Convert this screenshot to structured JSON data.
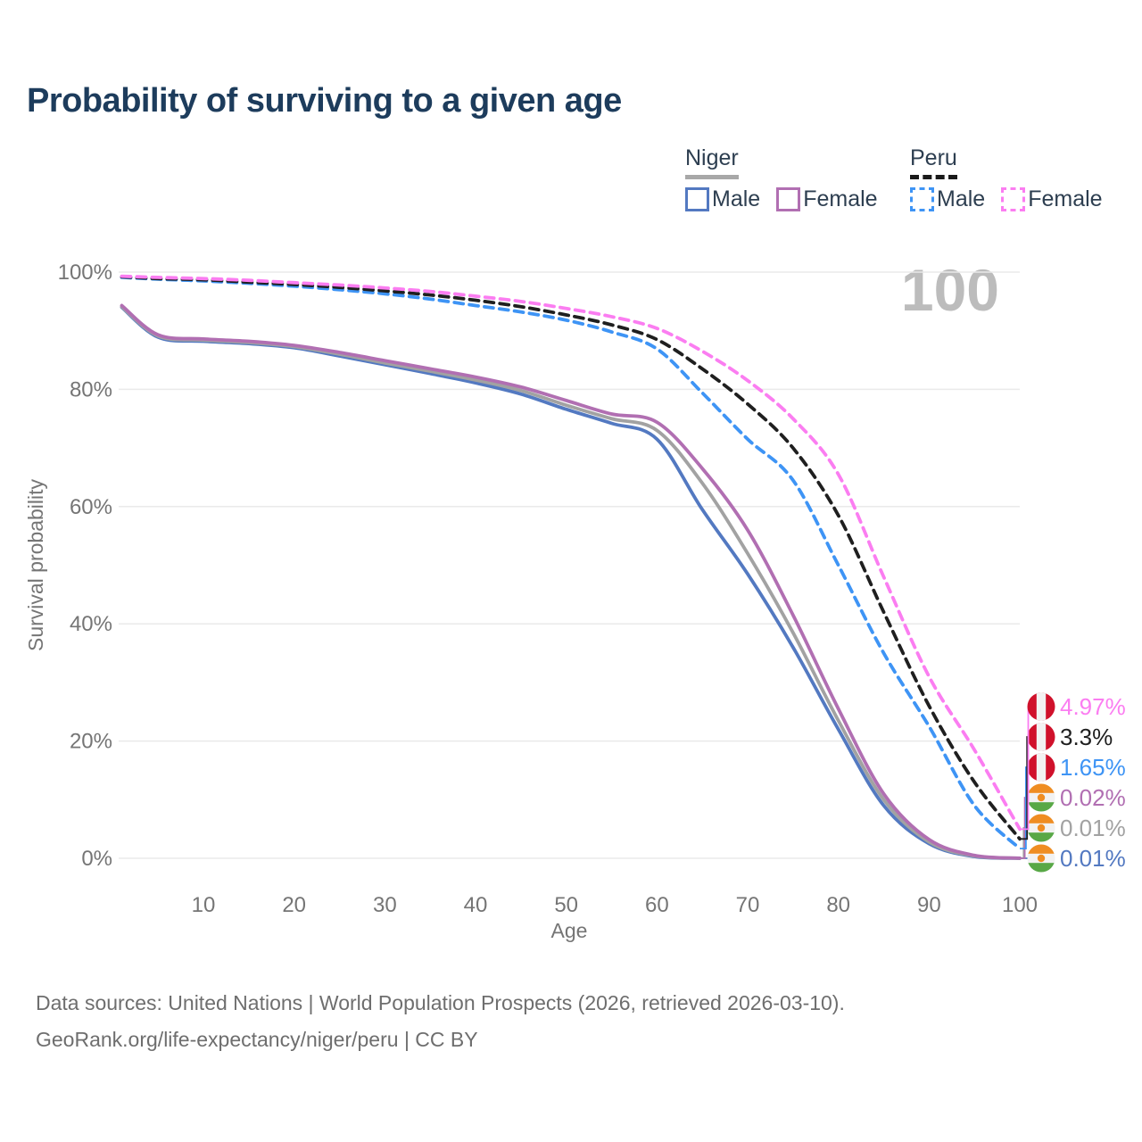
{
  "page": {
    "title": "Probability of surviving to a given age",
    "watermark_age": "100",
    "footer_line1": "Data sources: United Nations | World Population Prospects (2026, retrieved 2026-03-10).",
    "footer_line2": "GeoRank.org/life-expectancy/niger/peru | CC BY"
  },
  "theme": {
    "title_color": "#1d3c5c",
    "legend_text_color": "#2d3e50",
    "axis_text_color": "#757575",
    "grid_color": "#eaeaea",
    "watermark_color": "#bcbcbc",
    "footer_color": "#6e6e6e",
    "peru_flag_red": "#d0112b",
    "peru_flag_white": "#f2f2f2",
    "niger_flag_orange": "#ef8d22",
    "niger_flag_white": "#f2f2f2",
    "niger_flag_green": "#58a846"
  },
  "legend": {
    "groups": [
      {
        "country": "Niger",
        "line_style": "solid",
        "line_color": "#a8a8a8",
        "items": [
          {
            "label": "Male",
            "color": "#5379c1",
            "dashed": false
          },
          {
            "label": "Female",
            "color": "#b16fb2",
            "dashed": false
          }
        ]
      },
      {
        "country": "Peru",
        "line_style": "dashed",
        "line_color": "#1a1a1a",
        "items": [
          {
            "label": "Male",
            "color": "#3e94f5",
            "dashed": true
          },
          {
            "label": "Female",
            "color": "#fb7df1",
            "dashed": true
          }
        ]
      }
    ]
  },
  "chart_data": {
    "type": "line",
    "title": "Probability of surviving to a given age",
    "xlabel": "Age",
    "ylabel": "Survival probability",
    "xlim": [
      1,
      100
    ],
    "ylim": [
      0,
      100
    ],
    "grid": "horizontal-only",
    "legend_position": "top-right",
    "x_ticks": {
      "values": [
        10,
        20,
        30,
        40,
        50,
        60,
        70,
        80,
        90,
        100
      ],
      "labels": [
        "10",
        "20",
        "30",
        "40",
        "50",
        "60",
        "70",
        "80",
        "90",
        "100"
      ]
    },
    "y_ticks": {
      "values": [
        0,
        20,
        40,
        60,
        80,
        100
      ],
      "labels": [
        "0%",
        "20%",
        "40%",
        "60%",
        "80%",
        "100%"
      ]
    },
    "x": [
      1,
      5,
      10,
      15,
      20,
      25,
      30,
      35,
      40,
      45,
      50,
      55,
      60,
      65,
      70,
      75,
      80,
      85,
      90,
      95,
      100
    ],
    "series": [
      {
        "id": "niger-male",
        "country": "Niger",
        "sex": "Male",
        "color": "#5379c1",
        "dashed": false,
        "flag": "niger",
        "end_label": "0.01%",
        "values": [
          94.0,
          88.9,
          88.2,
          87.8,
          87.1,
          85.7,
          84.2,
          82.7,
          81.1,
          79.2,
          76.6,
          74.2,
          71.5,
          59.5,
          48.5,
          36,
          22,
          9,
          2.5,
          0.3,
          0.01
        ]
      },
      {
        "id": "niger-total",
        "country": "Niger",
        "sex": "Both",
        "color": "#a2a2a2",
        "dashed": false,
        "flag": "niger",
        "end_label": "0.01%",
        "values": [
          94.1,
          89.1,
          88.4,
          88.0,
          87.3,
          86.0,
          84.5,
          83.1,
          81.6,
          79.8,
          77.3,
          75.0,
          73.0,
          64.0,
          52.0,
          38.5,
          23.5,
          10,
          2.8,
          0.4,
          0.01
        ]
      },
      {
        "id": "niger-female",
        "country": "Niger",
        "sex": "Female",
        "color": "#b16fb2",
        "dashed": false,
        "flag": "niger",
        "end_label": "0.02%",
        "values": [
          94.3,
          89.3,
          88.6,
          88.2,
          87.5,
          86.3,
          84.9,
          83.5,
          82.1,
          80.4,
          78.1,
          75.8,
          74.4,
          66.5,
          56.0,
          41.5,
          25.5,
          11,
          3.2,
          0.5,
          0.02
        ]
      },
      {
        "id": "peru-male",
        "country": "Peru",
        "sex": "Male",
        "color": "#3e94f5",
        "dashed": true,
        "flag": "peru",
        "end_label": "1.65%",
        "values": [
          99.1,
          98.8,
          98.5,
          98.1,
          97.6,
          97.0,
          96.3,
          95.4,
          94.3,
          93.2,
          91.8,
          89.8,
          86.9,
          79.4,
          71.5,
          64.5,
          50,
          35,
          22.5,
          9,
          1.65
        ]
      },
      {
        "id": "peru-total",
        "country": "Peru",
        "sex": "Both",
        "color": "#1f1f1f",
        "dashed": true,
        "flag": "peru",
        "end_label": "3.3%",
        "values": [
          99.2,
          98.9,
          98.7,
          98.3,
          97.9,
          97.4,
          96.8,
          96.1,
          95.2,
          94.1,
          92.7,
          91.0,
          88.5,
          83.5,
          77.5,
          70,
          58.5,
          42,
          26,
          13,
          3.3
        ]
      },
      {
        "id": "peru-female",
        "country": "Peru",
        "sex": "Female",
        "color": "#fb7df1",
        "dashed": true,
        "flag": "peru",
        "end_label": "4.97%",
        "values": [
          99.3,
          99.1,
          98.9,
          98.6,
          98.2,
          97.8,
          97.3,
          96.7,
          95.9,
          95.0,
          93.8,
          92.4,
          90.4,
          86.5,
          81.5,
          75,
          65.5,
          48,
          31,
          18.5,
          4.97
        ]
      }
    ]
  }
}
